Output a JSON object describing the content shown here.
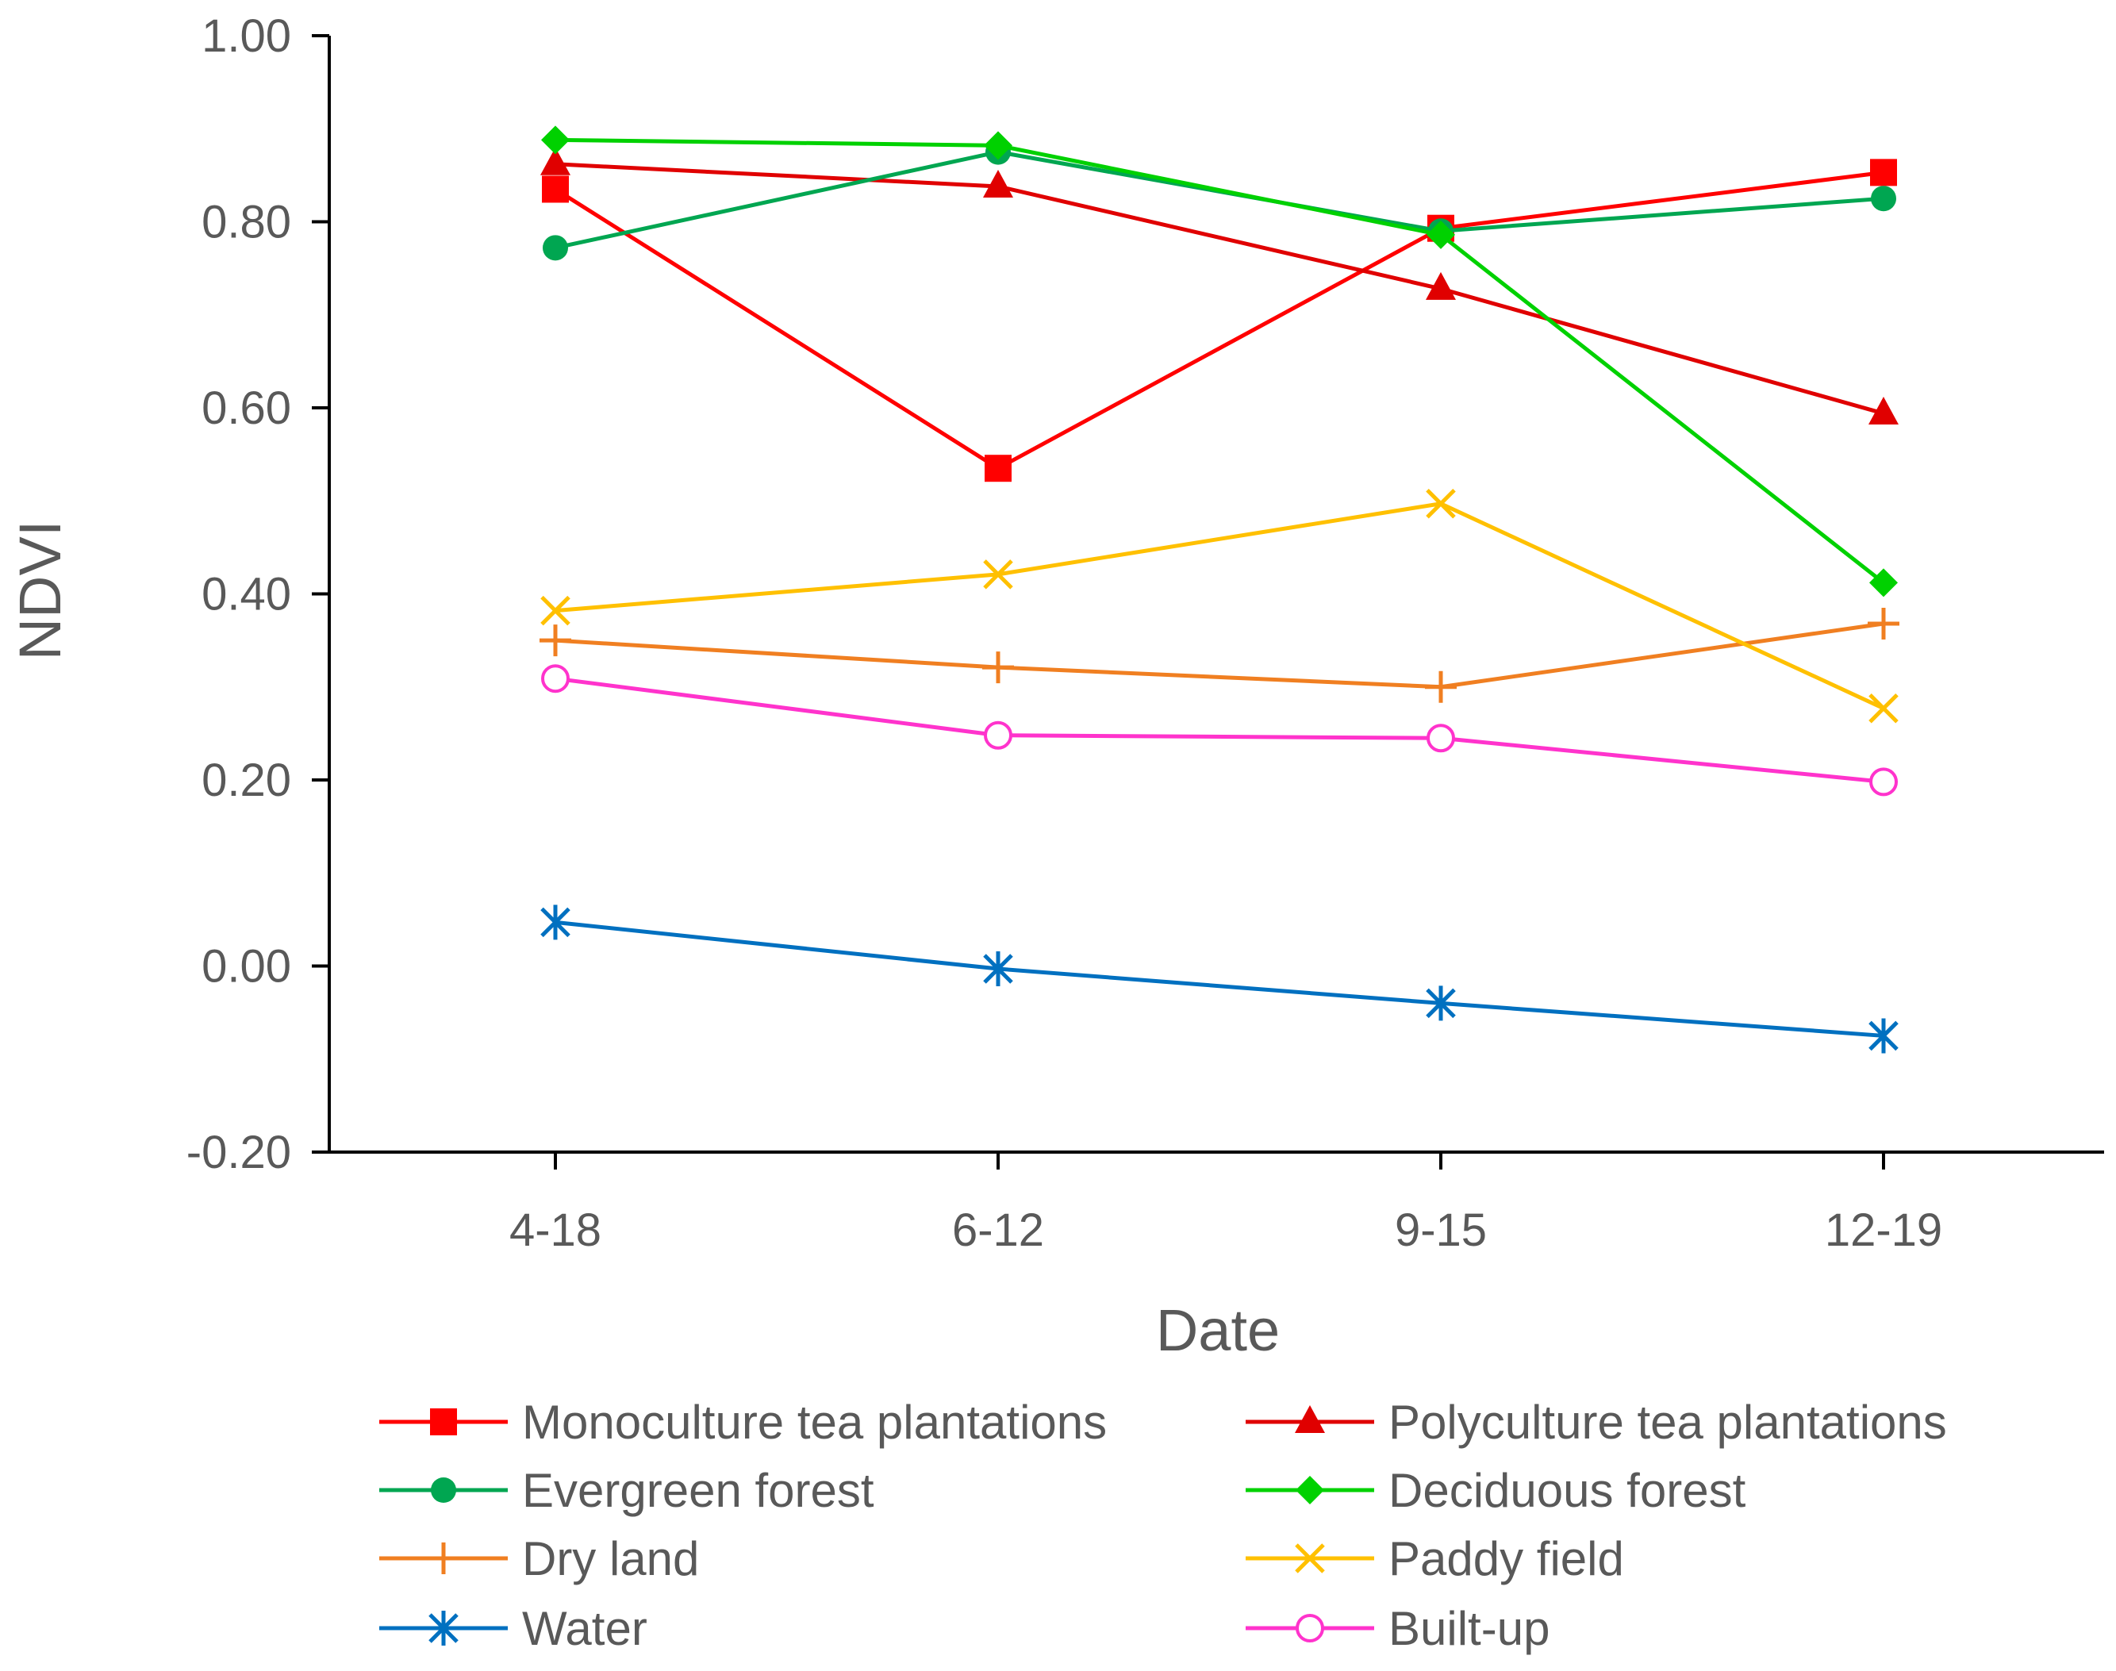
{
  "chart_data": {
    "type": "line",
    "title": "",
    "xlabel": "Date",
    "ylabel": "NDVI",
    "categories": [
      "4-18",
      "6-12",
      "9-15",
      "12-19"
    ],
    "ylim": [
      -0.2,
      1.0
    ],
    "yticks": [
      "-0.20",
      "0.00",
      "0.20",
      "0.40",
      "0.60",
      "0.80",
      "1.00"
    ],
    "grid": false,
    "legend_position": "bottom",
    "series": [
      {
        "name": "Monoculture tea plantations",
        "values": [
          0.835,
          0.535,
          0.793,
          0.853
        ],
        "color": "#ff0000",
        "marker": "square"
      },
      {
        "name": "Polyculture tea plantations",
        "values": [
          0.862,
          0.838,
          0.728,
          0.594
        ],
        "color": "#e00000",
        "marker": "triangle"
      },
      {
        "name": "Evergreen forest",
        "values": [
          0.772,
          0.875,
          0.79,
          0.825
        ],
        "color": "#00a651",
        "marker": "circle"
      },
      {
        "name": "Deciduous forest",
        "values": [
          0.888,
          0.882,
          0.786,
          0.412
        ],
        "color": "#00d100",
        "marker": "diamond"
      },
      {
        "name": "Dry land",
        "values": [
          0.35,
          0.321,
          0.3,
          0.368
        ],
        "color": "#f07f21",
        "marker": "plus"
      },
      {
        "name": "Paddy field",
        "values": [
          0.382,
          0.421,
          0.497,
          0.277
        ],
        "color": "#ffc000",
        "marker": "x"
      },
      {
        "name": "Water",
        "values": [
          0.047,
          -0.003,
          -0.04,
          -0.075
        ],
        "color": "#0070c0",
        "marker": "star"
      },
      {
        "name": "Built-up",
        "values": [
          0.309,
          0.248,
          0.245,
          0.198
        ],
        "color": "#ff33cc",
        "marker": "open-circle"
      }
    ]
  }
}
